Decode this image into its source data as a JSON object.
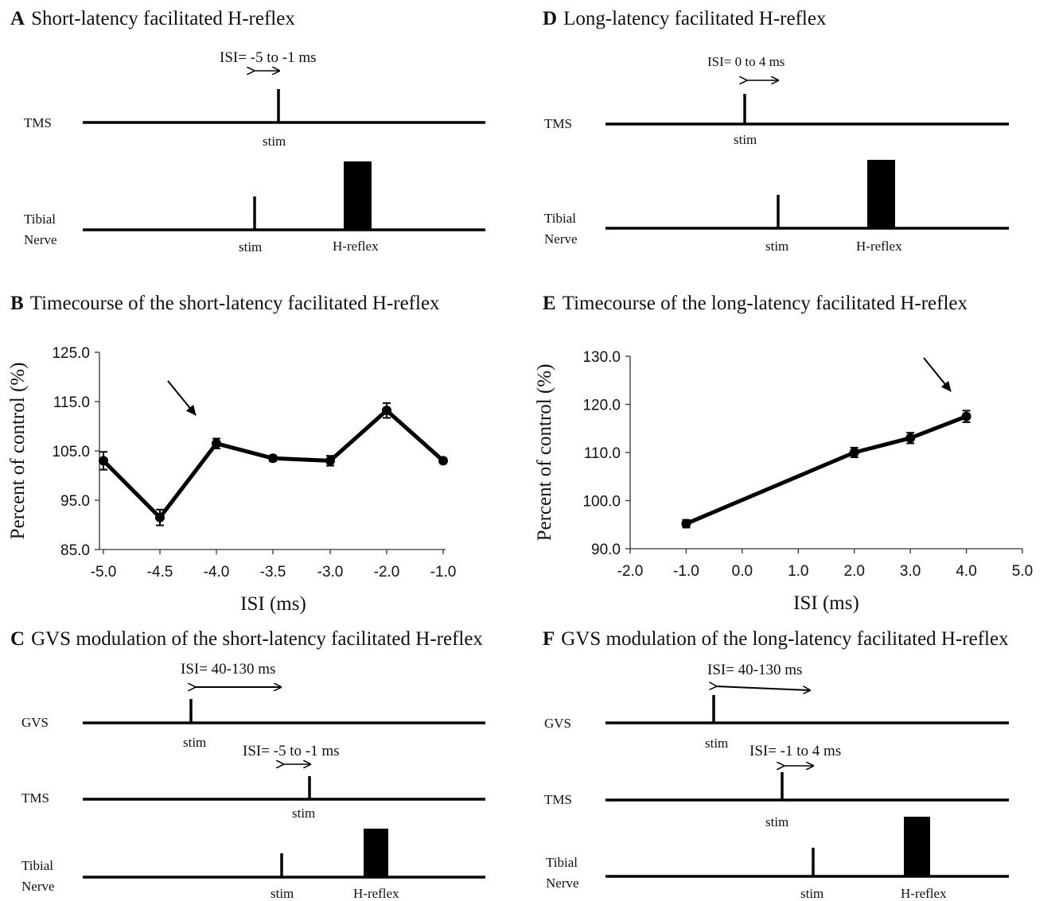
{
  "panels": {
    "A": {
      "letter": "A",
      "title": "Short-latency facilitated H-reflex",
      "isi": "ISI= -5 to -1 ms",
      "row1": "TMS",
      "row2a": "Tibial",
      "row2b": "Nerve",
      "stim1": "stim",
      "stim2": "stim",
      "hreflex": "H-reflex"
    },
    "D": {
      "letter": "D",
      "title": "Long-latency facilitated H-reflex",
      "isi": "ISI= 0 to 4 ms",
      "row1": "TMS",
      "row2a": "Tibial",
      "row2b": "Nerve",
      "stim1": "stim",
      "stim2": "stim",
      "hreflex": "H-reflex"
    },
    "B": {
      "letter": "B",
      "title": "Timecourse of the short-latency facilitated H-reflex"
    },
    "E": {
      "letter": "E",
      "title": "Timecourse of the long-latency facilitated H-reflex"
    },
    "C": {
      "letter": "C",
      "title": "GVS modulation of the short-latency facilitated H-reflex",
      "isi1": "ISI= 40-130 ms",
      "isi2": "ISI= -5 to -1 ms",
      "row1": "GVS",
      "row2": "TMS",
      "row3a": "Tibial",
      "row3b": "Nerve",
      "stim1": "stim",
      "stim2": "stim",
      "stim3": "stim",
      "hreflex": "H-reflex"
    },
    "F": {
      "letter": "F",
      "title": "GVS modulation of the long-latency facilitated H-reflex",
      "isi1": "ISI= 40-130 ms",
      "isi2": "ISI= -1 to 4 ms",
      "row1": "GVS",
      "row2": "TMS",
      "row3a": "Tibial",
      "row3b": "Nerve",
      "stim1": "stim",
      "stim2": "stim",
      "stim3": "stim",
      "hreflex": "H-reflex"
    }
  },
  "chart_data": [
    {
      "panel": "B",
      "type": "line",
      "title": "Timecourse of the short-latency facilitated H-reflex",
      "xlabel": "ISI (ms)",
      "ylabel": "Percent of control (%)",
      "xlim": [
        -5.0,
        -1.0
      ],
      "ylim": [
        85.0,
        125.0
      ],
      "xticks": [
        "-5.0",
        "-4.5",
        "-4.0",
        "-3.5",
        "-3.0",
        "-2.0",
        "-1.0"
      ],
      "yticks": [
        "85.0",
        "95.0",
        "105.0",
        "115.0",
        "125.0"
      ],
      "x": [
        "-5.0",
        "-4.5",
        "-4.0",
        "-3.5",
        "-3.0",
        "-2.0",
        "-1.0"
      ],
      "y": [
        103.0,
        91.5,
        106.5,
        103.5,
        103.0,
        113.2,
        103.0
      ],
      "error": [
        1.8,
        1.6,
        1.0,
        0.6,
        1.0,
        1.5,
        0.5
      ],
      "annotation": "arrow pointing to -4.0"
    },
    {
      "panel": "E",
      "type": "line",
      "title": "Timecourse of the long-latency facilitated H-reflex",
      "xlabel": "ISI (ms)",
      "ylabel": "Percent of control (%)",
      "xlim": [
        -2.0,
        5.0
      ],
      "ylim": [
        90.0,
        130.0
      ],
      "xticks": [
        "-2.0",
        "-1.0",
        "0.0",
        "1.0",
        "2.0",
        "3.0",
        "4.0",
        "5.0"
      ],
      "yticks": [
        "90.0",
        "100.0",
        "110.0",
        "120.0",
        "130.0"
      ],
      "x": [
        -1.0,
        2.0,
        3.0,
        4.0
      ],
      "y": [
        95.2,
        110.0,
        113.0,
        117.5
      ],
      "error": [
        0.8,
        1.0,
        1.1,
        1.2
      ],
      "annotation": "arrow pointing to 4.0"
    }
  ]
}
